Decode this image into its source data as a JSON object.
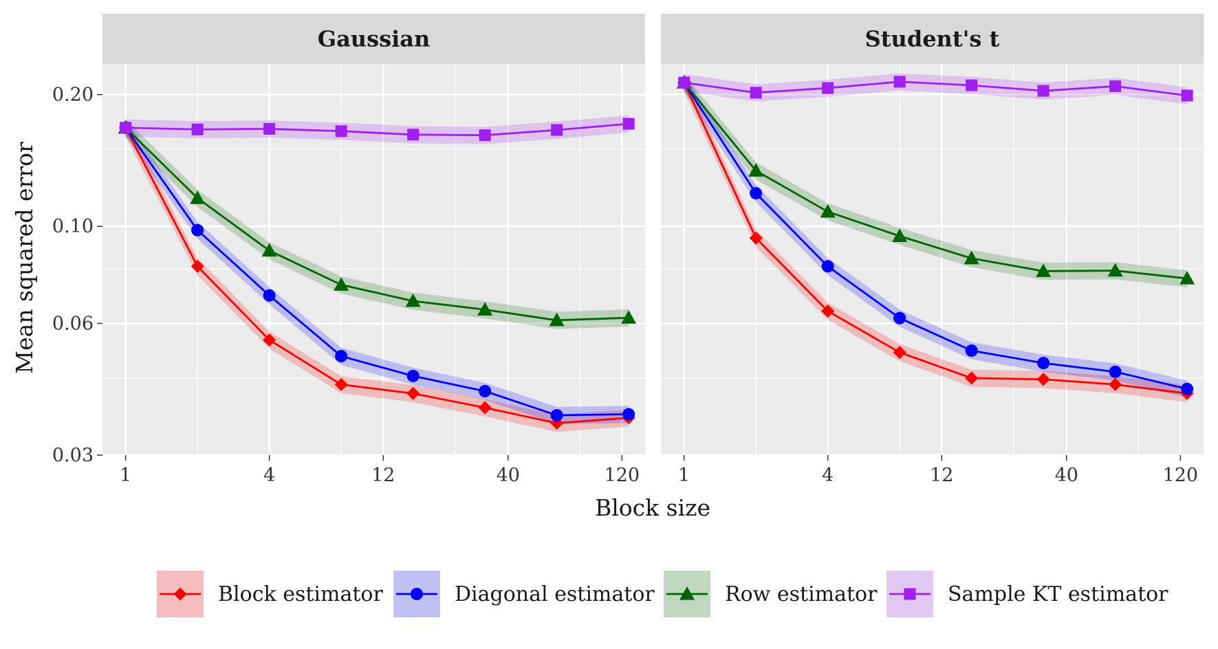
{
  "chart_data": {
    "type": "line",
    "xlabel": "Block size",
    "ylabel": "Mean squared error",
    "x_scale": "log",
    "y_scale": "log",
    "xlim": [
      0.8,
      150
    ],
    "ylim": [
      0.03,
      0.235
    ],
    "x_ticks": [
      1,
      4,
      12,
      40,
      120
    ],
    "x_tick_labels": [
      "1",
      "4",
      "12",
      "40",
      "120"
    ],
    "x_minor_ticks": [
      2,
      8,
      24,
      80
    ],
    "y_ticks": [
      0.03,
      0.06,
      0.1,
      0.2
    ],
    "y_tick_labels": [
      "0.03",
      "0.06",
      "0.10",
      "0.20"
    ],
    "y_minor_ticks": [
      0.045,
      0.08,
      0.15
    ],
    "x": [
      1,
      2,
      4,
      8,
      16,
      32,
      64,
      128
    ],
    "panels": [
      {
        "title": "Gaussian",
        "series": [
          {
            "name": "Block estimator",
            "values": [
              0.168,
              0.081,
              0.055,
              0.0435,
              0.0415,
              0.0385,
              0.0355,
              0.0365
            ]
          },
          {
            "name": "Diagonal estimator",
            "values": [
              0.168,
              0.098,
              0.0695,
              0.0505,
              0.0455,
              0.042,
              0.037,
              0.0372
            ]
          },
          {
            "name": "Row estimator",
            "values": [
              0.168,
              0.116,
              0.088,
              0.0735,
              0.0675,
              0.0645,
              0.061,
              0.0618
            ]
          },
          {
            "name": "Sample KT estimator",
            "values": [
              0.168,
              0.1665,
              0.167,
              0.165,
              0.162,
              0.1615,
              0.166,
              0.1715
            ]
          }
        ]
      },
      {
        "title": "Student's t",
        "series": [
          {
            "name": "Block estimator",
            "values": [
              0.213,
              0.094,
              0.064,
              0.0515,
              0.045,
              0.0447,
              0.0435,
              0.0415
            ]
          },
          {
            "name": "Diagonal estimator",
            "values": [
              0.213,
              0.119,
              0.081,
              0.0617,
              0.052,
              0.0487,
              0.0465,
              0.0425
            ]
          },
          {
            "name": "Row estimator",
            "values": [
              0.213,
              0.134,
              0.108,
              0.095,
              0.0845,
              0.079,
              0.0792,
              0.076
            ]
          },
          {
            "name": "Sample KT estimator",
            "values": [
              0.213,
              0.202,
              0.207,
              0.214,
              0.21,
              0.204,
              0.209,
              0.199
            ]
          }
        ]
      }
    ],
    "band_relative_halfwidth": 0.045,
    "legend": {
      "position": "bottom",
      "entries": [
        {
          "label": "Block estimator",
          "color": "#ff0000",
          "fill": "#f4bcbc",
          "shape": "diamond"
        },
        {
          "label": "Diagonal estimator",
          "color": "#0000ff",
          "fill": "#c0c0f2",
          "shape": "circle"
        },
        {
          "label": "Row estimator",
          "color": "#006400",
          "fill": "#bfd6bf",
          "shape": "triangle"
        },
        {
          "label": "Sample KT estimator",
          "color": "#a020f0",
          "fill": "#e0c8f2",
          "shape": "square"
        }
      ]
    }
  }
}
